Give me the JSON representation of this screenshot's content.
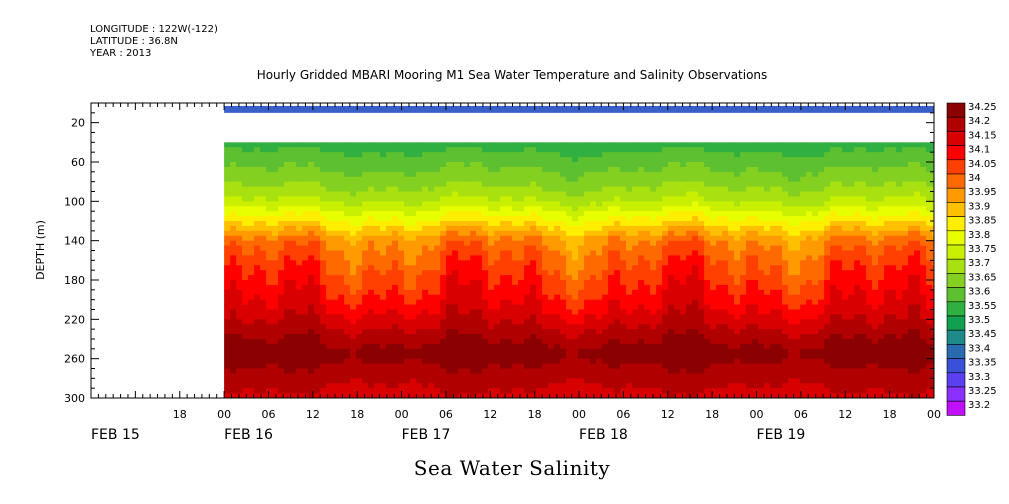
{
  "header": {
    "longitude": "LONGITUDE : 122W(-122)",
    "latitude": "LATITUDE : 36.8N",
    "year": "YEAR : 2013"
  },
  "colors": {
    "plot_border": "#000000",
    "missing_data": "#ffffff",
    "top_band": "#3a5fc8"
  },
  "chart_data": {
    "type": "heatmap",
    "title": "Hourly Gridded MBARI Mooring M1 Sea Water Temperature and Salinity Observations",
    "footer": "Sea Water Salinity",
    "ylabel": "DEPTH (m)",
    "ylim": [
      300,
      0
    ],
    "y_ticks": [
      20,
      60,
      100,
      140,
      180,
      220,
      260,
      300
    ],
    "x_ticks": [
      "18",
      "00",
      "06",
      "12",
      "18",
      "00",
      "06",
      "12",
      "18",
      "00",
      "06",
      "12",
      "18",
      "00",
      "06",
      "12",
      "18",
      "00"
    ],
    "x_dates": [
      "FEB 15",
      "FEB 16",
      "FEB 17",
      "FEB 18",
      "FEB 19"
    ],
    "data_start": "FEB 16 00",
    "data_end": "FEB 20 00",
    "top_band_depth": [
      3,
      10
    ],
    "missing_depth": [
      10,
      40
    ],
    "depth_profile": [
      {
        "depth": 40,
        "value": 33.52
      },
      {
        "depth": 60,
        "value": 33.58
      },
      {
        "depth": 80,
        "value": 33.63
      },
      {
        "depth": 100,
        "value": 33.7
      },
      {
        "depth": 120,
        "value": 33.82
      },
      {
        "depth": 140,
        "value": 33.95
      },
      {
        "depth": 160,
        "value": 34.0
      },
      {
        "depth": 180,
        "value": 34.04
      },
      {
        "depth": 200,
        "value": 34.08
      },
      {
        "depth": 220,
        "value": 34.13
      },
      {
        "depth": 240,
        "value": 34.19
      },
      {
        "depth": 255,
        "value": 34.23
      },
      {
        "depth": 270,
        "value": 34.19
      },
      {
        "depth": 285,
        "value": 34.16
      },
      {
        "depth": 300,
        "value": 34.13
      }
    ],
    "legend": [
      {
        "label": "34.25",
        "color": "#8b0000"
      },
      {
        "label": "34.2",
        "color": "#b00000"
      },
      {
        "label": "34.15",
        "color": "#d80000"
      },
      {
        "label": "34.1",
        "color": "#ff0000"
      },
      {
        "label": "34.05",
        "color": "#ff4000"
      },
      {
        "label": "34",
        "color": "#ff6a00"
      },
      {
        "label": "33.95",
        "color": "#ff9a00"
      },
      {
        "label": "33.9",
        "color": "#ffc000"
      },
      {
        "label": "33.85",
        "color": "#ffee00"
      },
      {
        "label": "33.8",
        "color": "#e8ff00"
      },
      {
        "label": "33.75",
        "color": "#c8f000"
      },
      {
        "label": "33.7",
        "color": "#a8e010"
      },
      {
        "label": "33.65",
        "color": "#84d020"
      },
      {
        "label": "33.6",
        "color": "#5cc030"
      },
      {
        "label": "33.55",
        "color": "#30b040"
      },
      {
        "label": "33.5",
        "color": "#10a050"
      },
      {
        "label": "33.45",
        "color": "#1e8a8a"
      },
      {
        "label": "33.4",
        "color": "#2a6ab0"
      },
      {
        "label": "33.35",
        "color": "#3a50d8"
      },
      {
        "label": "33.3",
        "color": "#5a40f0"
      },
      {
        "label": "33.25",
        "color": "#8a30ff"
      },
      {
        "label": "33.2",
        "color": "#c010ff"
      }
    ]
  }
}
